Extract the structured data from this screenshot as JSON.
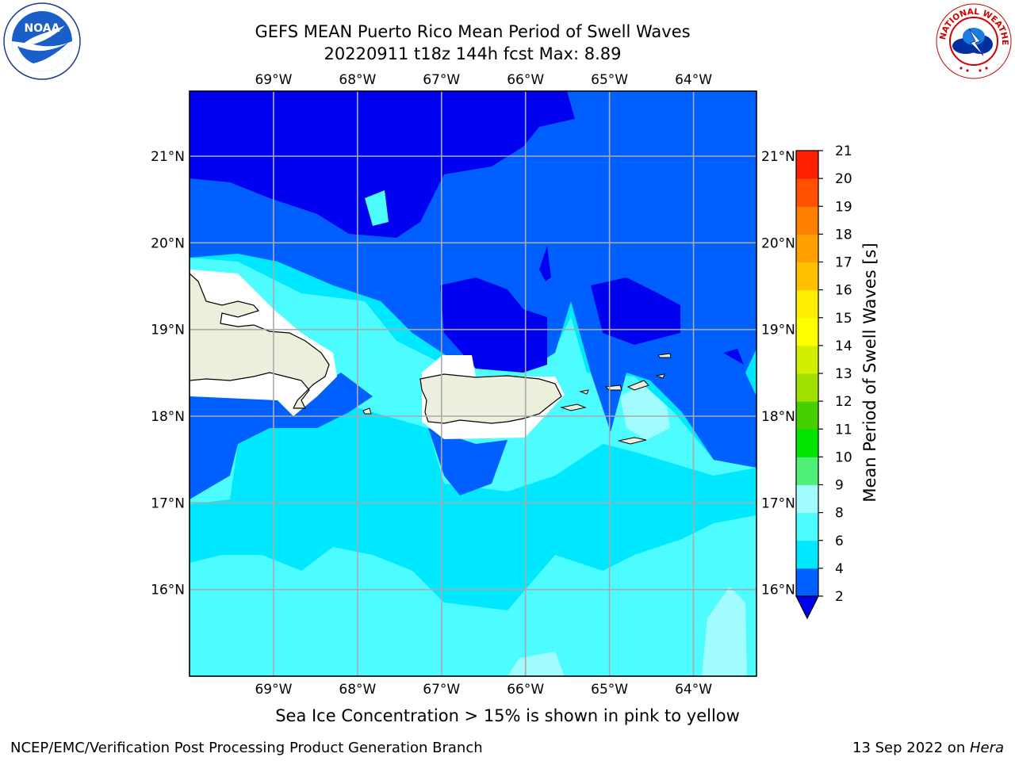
{
  "title": {
    "line1": "GEFS MEAN Puerto Rico Mean Period of Swell Waves",
    "line2": "20220911 t18z 144h fcst   Max: 8.89"
  },
  "map": {
    "lon_ticks": [
      {
        "lon": -69,
        "label": "69°W"
      },
      {
        "lon": -68,
        "label": "68°W"
      },
      {
        "lon": -67,
        "label": "67°W"
      },
      {
        "lon": -66,
        "label": "66°W"
      },
      {
        "lon": -65,
        "label": "65°W"
      },
      {
        "lon": -64,
        "label": "64°W"
      }
    ],
    "lat_ticks": [
      {
        "lat": 21,
        "label": "21°N"
      },
      {
        "lat": 20,
        "label": "20°N"
      },
      {
        "lat": 19,
        "label": "19°N"
      },
      {
        "lat": 18,
        "label": "18°N"
      },
      {
        "lat": 17,
        "label": "17°N"
      },
      {
        "lat": 16,
        "label": "16°N"
      }
    ],
    "lon_range": [
      -70,
      -63.25
    ],
    "lat_range": [
      15,
      21.75
    ]
  },
  "colorbar": {
    "label": "Mean Period of Swell Waves [s]",
    "ticks": [
      "2",
      "4",
      "6",
      "8",
      "9",
      "10",
      "11",
      "12",
      "13",
      "14",
      "15",
      "16",
      "17",
      "18",
      "19",
      "20",
      "21"
    ],
    "colors": [
      "#0060ff",
      "#00e8ff",
      "#4dfcff",
      "#a0fcff",
      "#50f078",
      "#00e400",
      "#44d000",
      "#a0e000",
      "#d0f000",
      "#ffff00",
      "#ffee00",
      "#ffc000",
      "#ffa000",
      "#ff8000",
      "#ff5000",
      "#ff2000",
      "#ff0000"
    ],
    "under_color": "#0000f0"
  },
  "palette": {
    "deep_blue": "#0000f0",
    "blue": "#0060ff",
    "cyan": "#00e8ff",
    "light_cyan": "#4dfcff",
    "pale_cyan": "#a0fcff",
    "land": "#eeeedc"
  },
  "logos": {
    "left": "NOAA",
    "right": "NATIONAL WEATHER SERVICE"
  },
  "caption": "Sea Ice Concentration > 15% is shown in pink to yellow",
  "footer": {
    "left": "NCEP/EMC/Verification Post Processing Product Generation Branch",
    "right_prefix": "13 Sep 2022 on ",
    "right_machine": "Hera"
  }
}
